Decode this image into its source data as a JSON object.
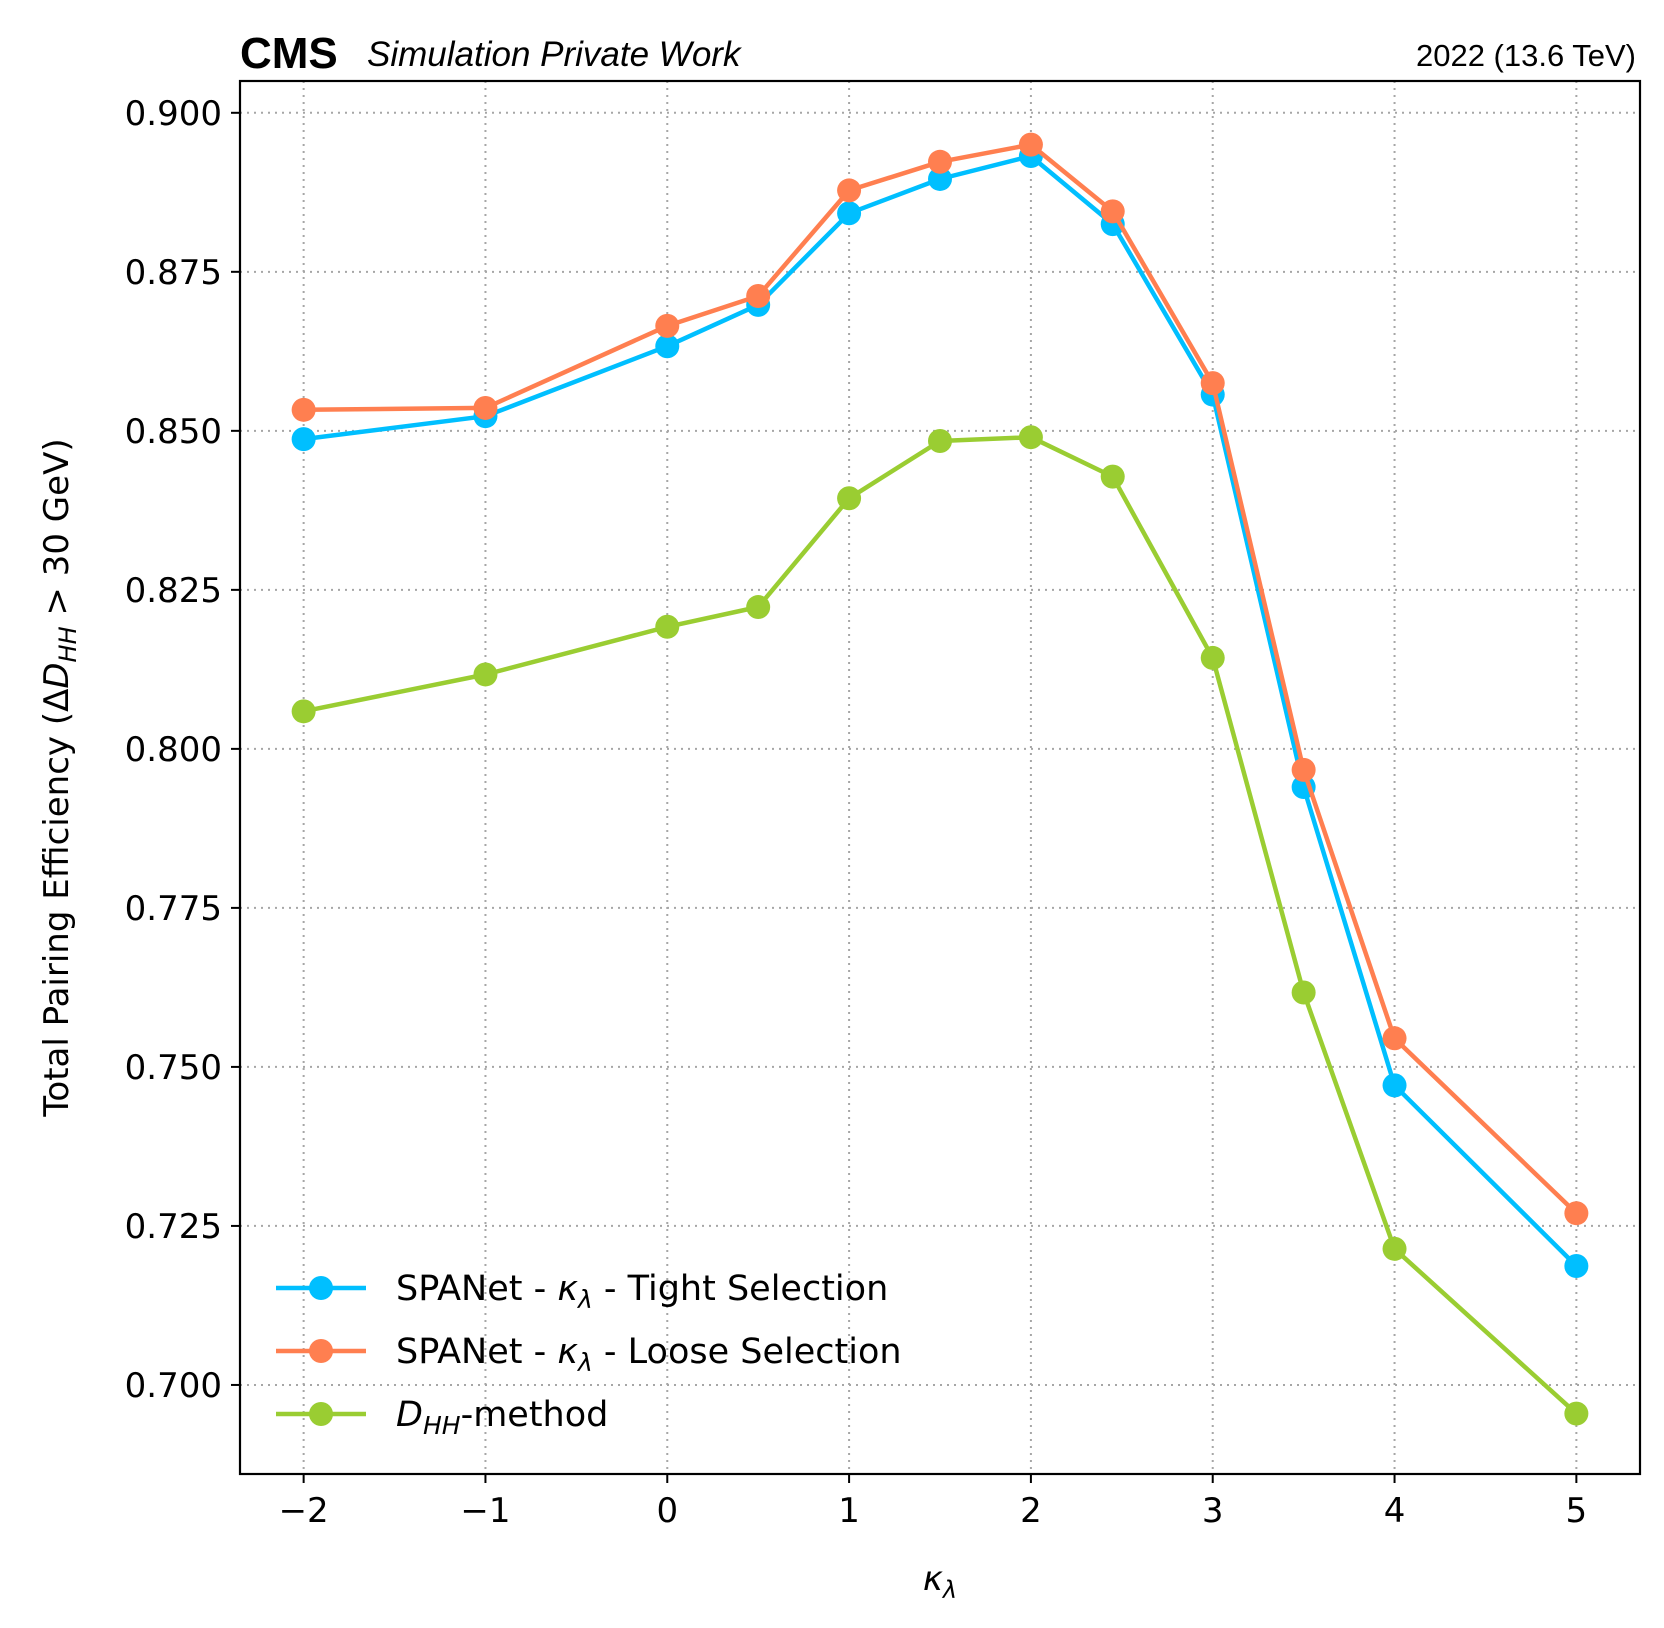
{
  "header": {
    "experiment": "CMS",
    "status": "Simulation Private Work",
    "energy": "2022 (13.6 TeV)"
  },
  "chart_data": {
    "type": "line",
    "title": "",
    "xlabel": "κλ",
    "xlabel_parts": {
      "base": "κ",
      "sub": "λ"
    },
    "ylabel": "Total Pairing Efficiency (ΔD_HH > 30 GeV)",
    "ylabel_parts": {
      "pre": "Total Pairing Efficiency (Δ",
      "var": "D",
      "sub": "HH",
      "post": " > 30 GeV)"
    },
    "xlim": [
      -2.35,
      5.35
    ],
    "ylim": [
      0.686,
      0.905
    ],
    "xticks": [
      -2,
      -1,
      0,
      1,
      2,
      3,
      4,
      5
    ],
    "xtick_labels": [
      "−2",
      "−1",
      "0",
      "1",
      "2",
      "3",
      "4",
      "5"
    ],
    "yticks": [
      0.7,
      0.725,
      0.75,
      0.775,
      0.8,
      0.825,
      0.85,
      0.875,
      0.9
    ],
    "ytick_labels": [
      "0.700",
      "0.725",
      "0.750",
      "0.775",
      "0.800",
      "0.825",
      "0.850",
      "0.875",
      "0.900"
    ],
    "grid": true,
    "legend_position": "lower-left",
    "x": [
      -2,
      -1,
      0,
      0.5,
      1,
      1.5,
      2,
      2.45,
      3,
      3.5,
      4,
      5
    ],
    "series": [
      {
        "name": "SPANet - κλ - Tight Selection",
        "legend_parts": {
          "pre": "SPANet - ",
          "var": "κ",
          "sub": "λ",
          "post": " - Tight Selection"
        },
        "color": "#00bfff",
        "values": [
          0.8487,
          0.8523,
          0.8633,
          0.8698,
          0.8842,
          0.8896,
          0.8932,
          0.8825,
          0.8557,
          0.794,
          0.7471,
          0.7187
        ]
      },
      {
        "name": "SPANet - κλ - Loose Selection",
        "legend_parts": {
          "pre": "SPANet - ",
          "var": "κ",
          "sub": "λ",
          "post": " - Loose Selection"
        },
        "color": "#ff7f50",
        "values": [
          0.8533,
          0.8536,
          0.8665,
          0.8712,
          0.8878,
          0.8923,
          0.895,
          0.8845,
          0.8575,
          0.7967,
          0.7545,
          0.727
        ]
      },
      {
        "name": "D_HH-method",
        "legend_parts": {
          "pre": "",
          "var": "D",
          "sub": "HH",
          "post": "-method"
        },
        "color": "#9acd32",
        "values": [
          0.8059,
          0.8117,
          0.8192,
          0.8223,
          0.8394,
          0.8484,
          0.849,
          0.8428,
          0.8143,
          0.7617,
          0.7214,
          0.6955
        ]
      }
    ]
  }
}
